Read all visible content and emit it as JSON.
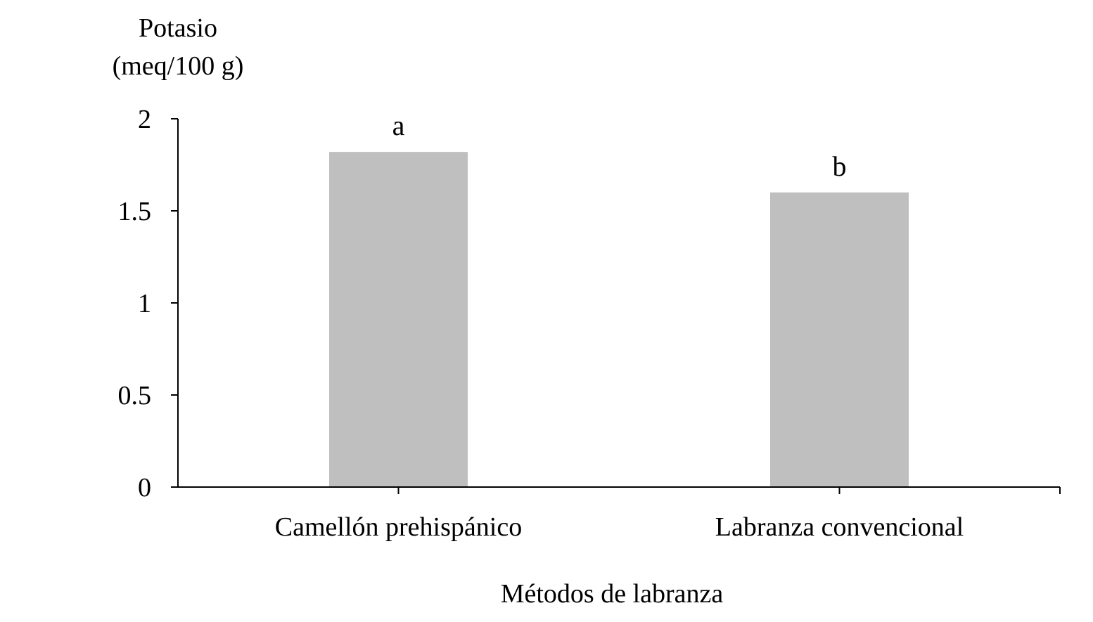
{
  "chart_data": {
    "type": "bar",
    "categories": [
      "Camellón prehispánico",
      "Labranza convencional"
    ],
    "values": [
      1.82,
      1.6
    ],
    "bar_labels": [
      "a",
      "b"
    ],
    "title": "",
    "ylabel_line1": "Potasio",
    "ylabel_line2": "(meq/100 g)",
    "xlabel": "Métodos de labranza",
    "ylim": [
      0,
      2
    ],
    "yticks": [
      0,
      0.5,
      1,
      1.5,
      2
    ],
    "ytick_labels": [
      "0",
      "0.5",
      "1",
      "1.5",
      "2"
    ],
    "grid": false,
    "legend": "none",
    "bar_color": "#bfbfbf"
  }
}
